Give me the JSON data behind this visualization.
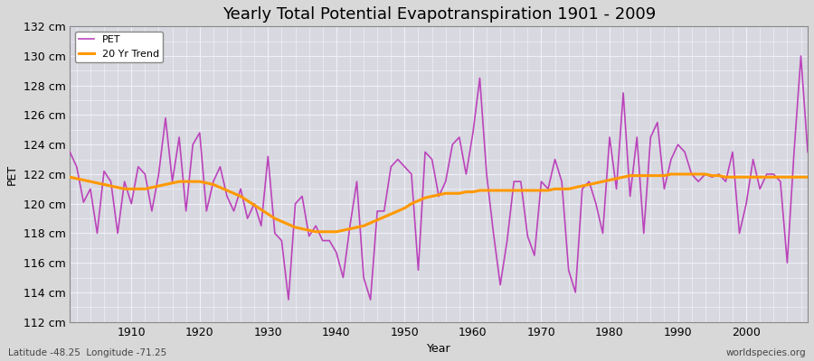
{
  "title": "Yearly Total Potential Evapotranspiration 1901 - 2009",
  "xlabel": "Year",
  "ylabel": "PET",
  "subtitle": "Latitude -48.25  Longitude -71.25",
  "watermark": "worldspecies.org",
  "years": [
    1901,
    1902,
    1903,
    1904,
    1905,
    1906,
    1907,
    1908,
    1909,
    1910,
    1911,
    1912,
    1913,
    1914,
    1915,
    1916,
    1917,
    1918,
    1919,
    1920,
    1921,
    1922,
    1923,
    1924,
    1925,
    1926,
    1927,
    1928,
    1929,
    1930,
    1931,
    1932,
    1933,
    1934,
    1935,
    1936,
    1937,
    1938,
    1939,
    1940,
    1941,
    1942,
    1943,
    1944,
    1945,
    1946,
    1947,
    1948,
    1949,
    1950,
    1951,
    1952,
    1953,
    1954,
    1955,
    1956,
    1957,
    1958,
    1959,
    1960,
    1961,
    1962,
    1963,
    1964,
    1965,
    1966,
    1967,
    1968,
    1969,
    1970,
    1971,
    1972,
    1973,
    1974,
    1975,
    1976,
    1977,
    1978,
    1979,
    1980,
    1981,
    1982,
    1983,
    1984,
    1985,
    1986,
    1987,
    1988,
    1989,
    1990,
    1991,
    1992,
    1993,
    1994,
    1995,
    1996,
    1997,
    1998,
    1999,
    2000,
    2001,
    2002,
    2003,
    2004,
    2005,
    2006,
    2007,
    2008,
    2009
  ],
  "pet": [
    123.5,
    122.5,
    120.1,
    121.0,
    118.0,
    122.2,
    121.5,
    118.0,
    121.5,
    120.0,
    122.5,
    122.0,
    119.5,
    122.0,
    125.8,
    121.5,
    124.5,
    119.5,
    124.0,
    124.8,
    119.5,
    121.5,
    122.5,
    120.5,
    119.5,
    121.0,
    119.0,
    120.0,
    118.5,
    123.2,
    118.0,
    117.5,
    113.5,
    120.0,
    120.5,
    117.8,
    118.5,
    117.5,
    117.5,
    116.7,
    115.0,
    118.5,
    121.5,
    115.0,
    113.5,
    119.5,
    119.5,
    122.5,
    123.0,
    122.5,
    122.0,
    115.5,
    123.5,
    123.0,
    120.5,
    121.5,
    124.0,
    124.5,
    122.0,
    124.8,
    128.5,
    122.0,
    118.0,
    114.5,
    117.5,
    121.5,
    121.5,
    117.8,
    116.5,
    121.5,
    121.0,
    123.0,
    121.5,
    115.5,
    114.0,
    121.0,
    121.5,
    120.0,
    118.0,
    124.5,
    121.0,
    127.5,
    120.5,
    124.5,
    118.0,
    124.5,
    125.5,
    121.0,
    123.0,
    124.0,
    123.5,
    122.0,
    121.5,
    122.0,
    121.8,
    122.0,
    121.5,
    123.5,
    118.0,
    120.0,
    123.0,
    121.0,
    122.0,
    122.0,
    121.5,
    116.0,
    123.5,
    130.0,
    123.5
  ],
  "trend": [
    121.8,
    121.7,
    121.6,
    121.5,
    121.4,
    121.3,
    121.2,
    121.1,
    121.0,
    121.0,
    121.0,
    121.0,
    121.1,
    121.2,
    121.3,
    121.4,
    121.5,
    121.5,
    121.5,
    121.5,
    121.4,
    121.3,
    121.1,
    120.9,
    120.7,
    120.5,
    120.2,
    119.9,
    119.6,
    119.3,
    119.0,
    118.8,
    118.6,
    118.4,
    118.3,
    118.2,
    118.1,
    118.1,
    118.1,
    118.1,
    118.2,
    118.3,
    118.4,
    118.5,
    118.7,
    118.9,
    119.1,
    119.3,
    119.5,
    119.7,
    120.0,
    120.2,
    120.4,
    120.5,
    120.6,
    120.7,
    120.7,
    120.7,
    120.8,
    120.8,
    120.9,
    120.9,
    120.9,
    120.9,
    120.9,
    120.9,
    120.9,
    120.9,
    120.9,
    120.9,
    120.9,
    121.0,
    121.0,
    121.0,
    121.1,
    121.2,
    121.3,
    121.4,
    121.5,
    121.6,
    121.7,
    121.8,
    121.9,
    121.9,
    121.9,
    121.9,
    121.9,
    121.9,
    122.0,
    122.0,
    122.0,
    122.0,
    122.0,
    122.0,
    121.9,
    121.9,
    121.8,
    121.8,
    121.8,
    121.8,
    121.8,
    121.8,
    121.8,
    121.8,
    121.8,
    121.8,
    121.8,
    121.8,
    121.8
  ],
  "pet_color": "#bb44bb",
  "trend_color": "#ff9900",
  "bg_color": "#d8d8d8",
  "plot_bg_color": "#d8d8e0",
  "grid_color": "#f0f0f8",
  "ylim": [
    112,
    132
  ],
  "yticks": [
    112,
    114,
    116,
    118,
    120,
    122,
    124,
    126,
    128,
    130,
    132
  ],
  "xticks": [
    1910,
    1920,
    1930,
    1940,
    1950,
    1960,
    1970,
    1980,
    1990,
    2000
  ],
  "title_fontsize": 13,
  "axis_fontsize": 9,
  "legend_fontsize": 8,
  "xlim": [
    1901,
    2009
  ]
}
